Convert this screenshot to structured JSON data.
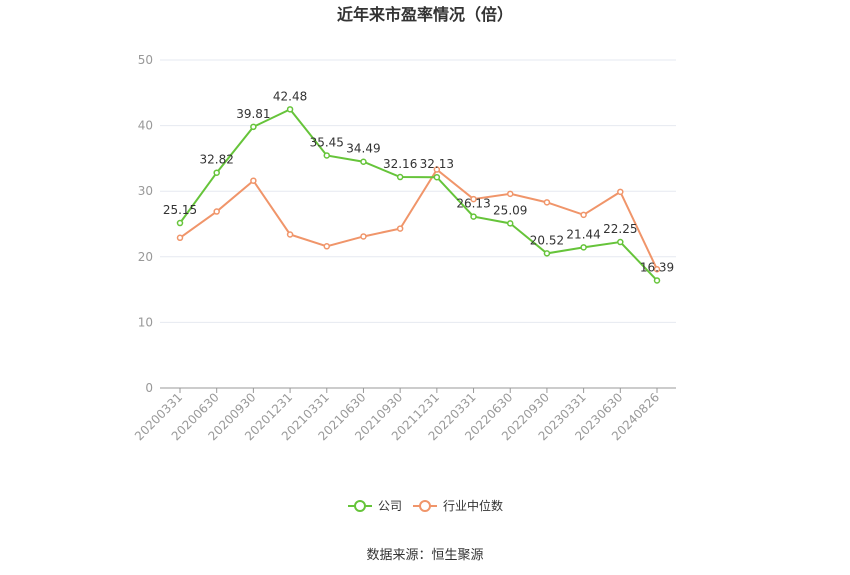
{
  "chart_data": {
    "type": "line",
    "title": "近年来市盈率情况（倍）",
    "categories": [
      "20200331",
      "20200630",
      "20200930",
      "20201231",
      "20210331",
      "20210630",
      "20210930",
      "20211231",
      "20220331",
      "20220630",
      "20220930",
      "20230331",
      "20230630",
      "20240826"
    ],
    "series": [
      {
        "name": "公司",
        "color": "#66c43a",
        "values": [
          25.15,
          32.82,
          39.81,
          42.48,
          35.45,
          34.49,
          32.16,
          32.13,
          26.13,
          25.09,
          20.52,
          21.44,
          22.25,
          16.39
        ],
        "labels": [
          "25.15",
          "32.82",
          "39.81",
          "42.48",
          "35.45",
          "34.49",
          "32.16",
          "32.13",
          "26.13",
          "25.09",
          "20.52",
          "21.44",
          "22.25",
          "16.39"
        ]
      },
      {
        "name": "行业中位数",
        "color": "#f0956a",
        "values": [
          22.9,
          26.9,
          31.6,
          23.4,
          21.6,
          23.1,
          24.3,
          33.3,
          28.8,
          29.6,
          28.3,
          26.4,
          29.9,
          18.1
        ]
      }
    ],
    "ylim": [
      0,
      50
    ],
    "yticks": [
      "0",
      "10",
      "20",
      "30",
      "40",
      "50"
    ],
    "grid": true,
    "legend_position": "bottom"
  },
  "source_text": "数据来源：恒生聚源"
}
